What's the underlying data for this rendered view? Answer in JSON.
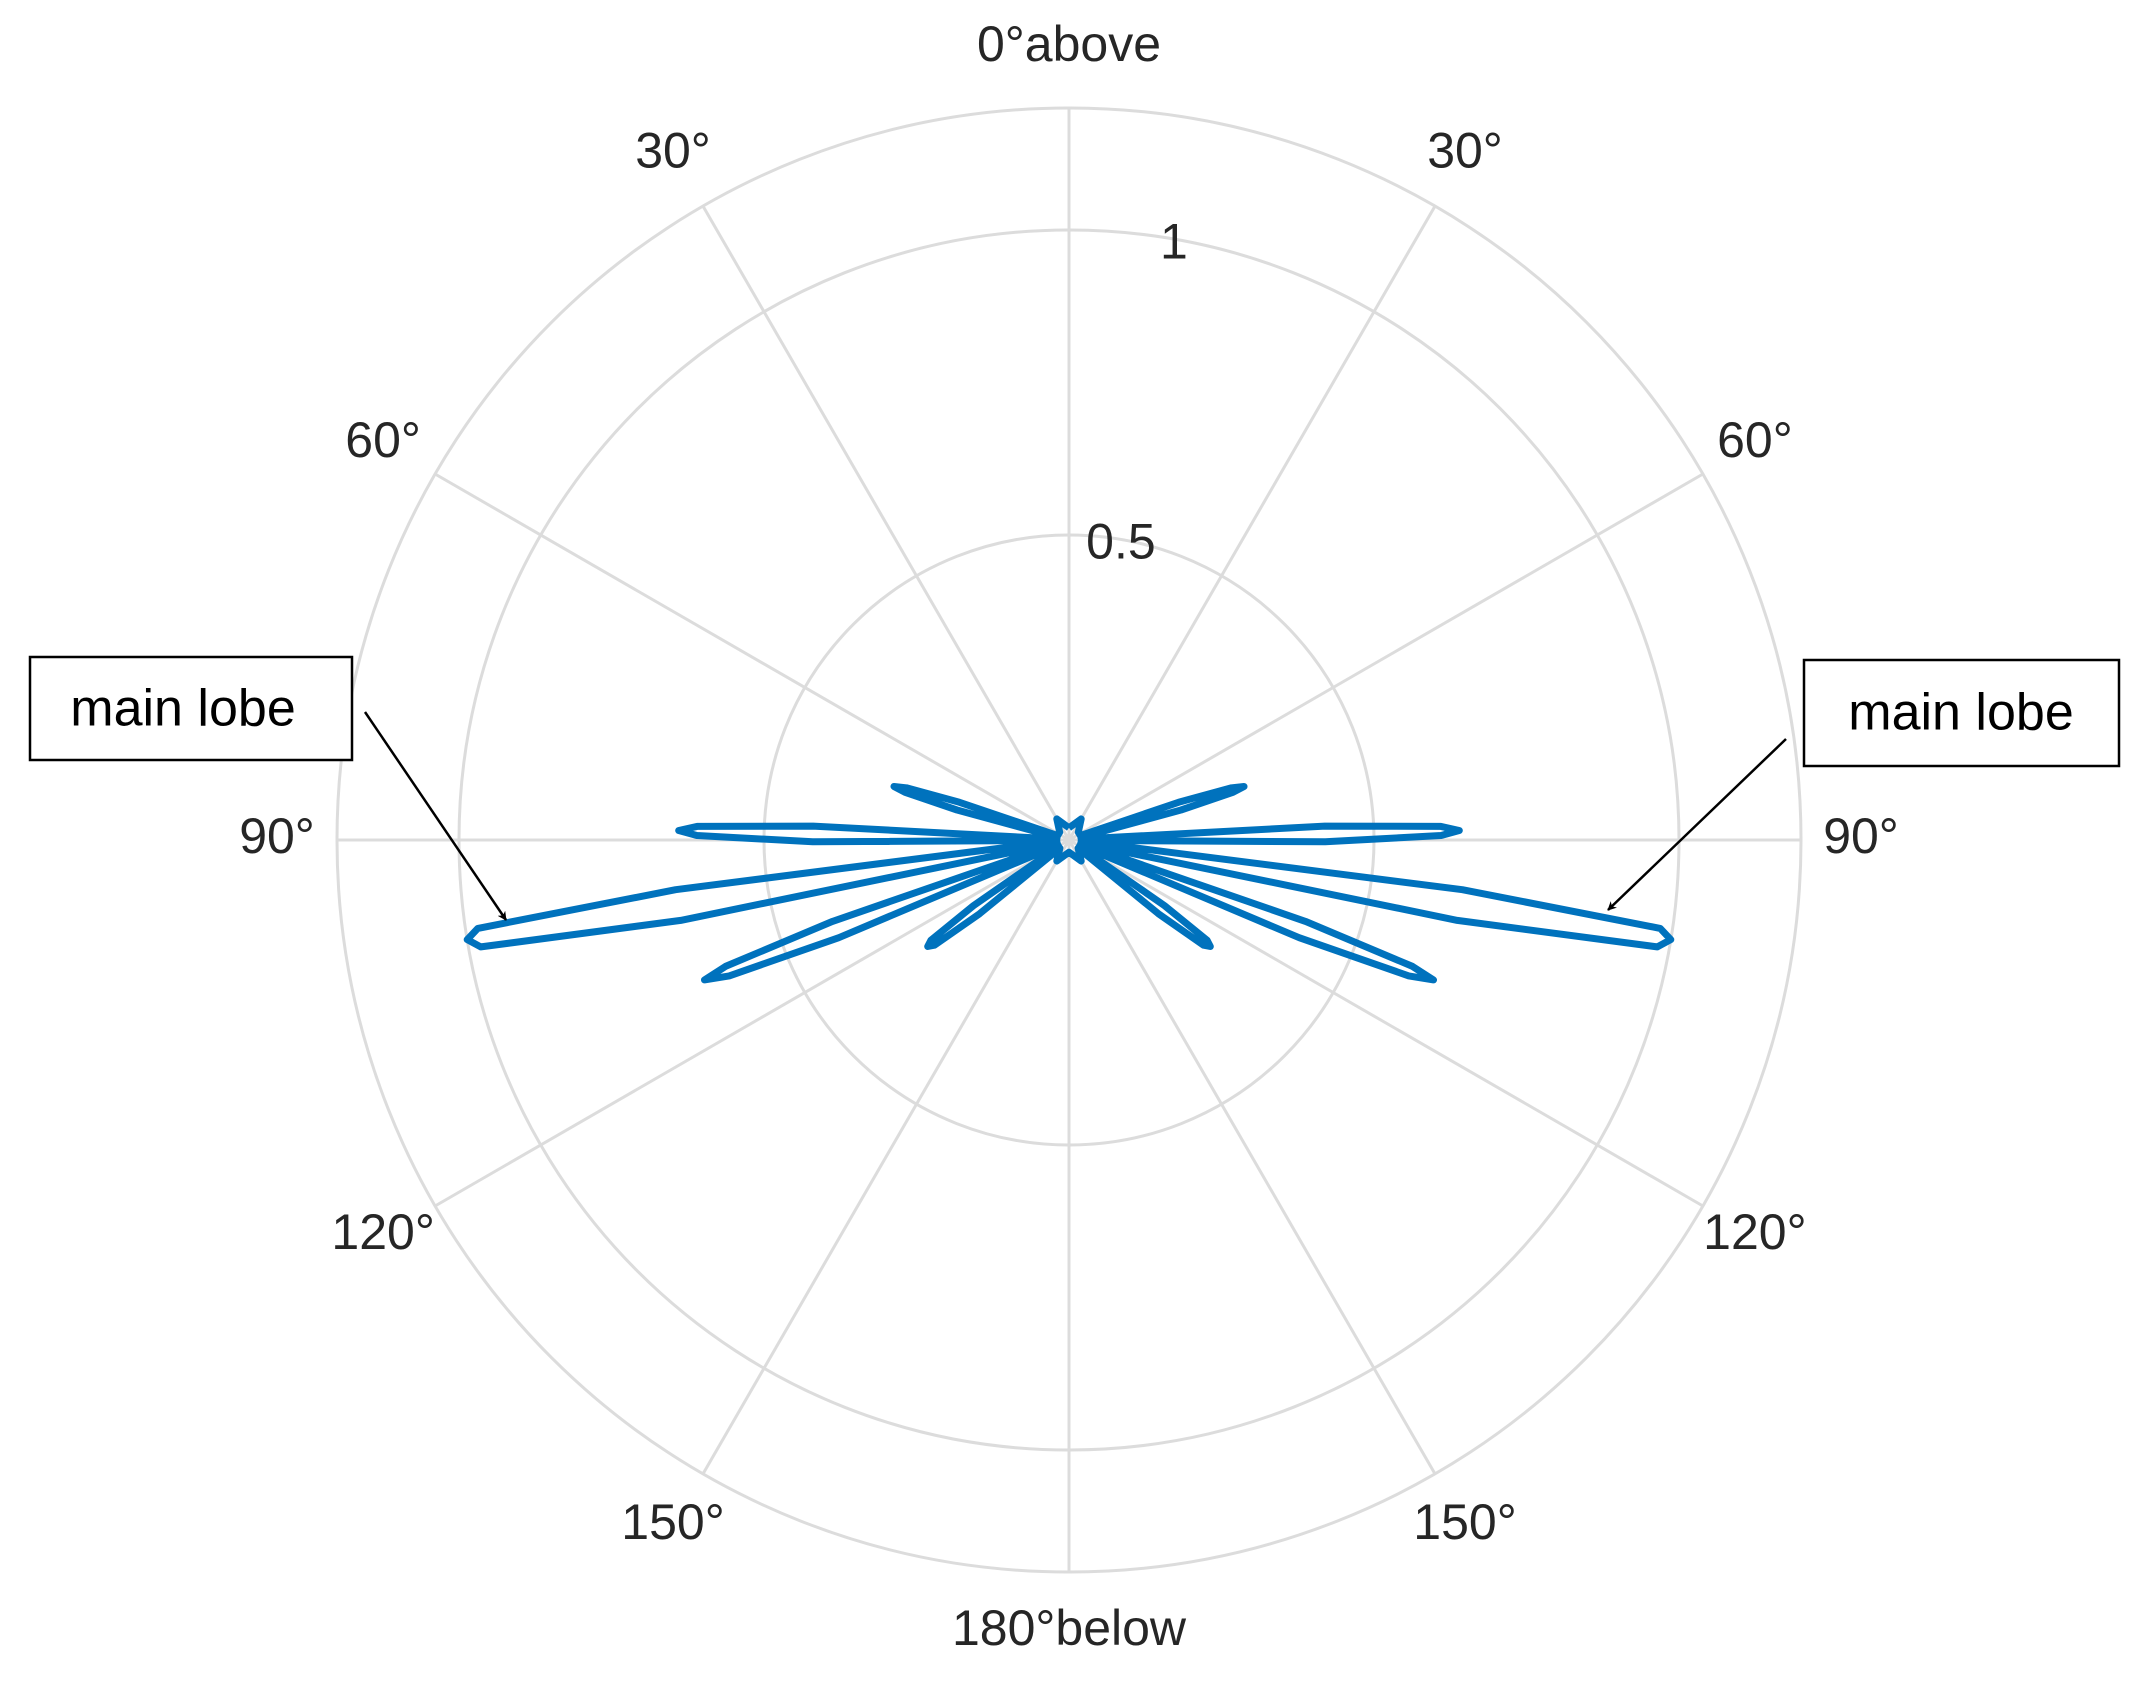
{
  "chart_data": {
    "type": "polar",
    "theta": [
      0,
      30,
      50,
      69,
      71,
      72.2,
      73,
      73.8,
      75,
      77,
      85.1,
      86.9,
      87.9,
      88.6,
      89.3,
      90.4,
      92.1,
      94.9,
      97.2,
      98.5,
      99.4,
      100.3,
      101.7,
      103.9,
      107,
      109,
      110.2,
      111,
      111.8,
      113,
      115,
      122,
      124.5,
      126,
      127,
      128,
      129.5,
      132,
      150,
      180,
      210,
      228,
      230.5,
      232,
      233,
      234,
      235.5,
      238,
      245,
      247,
      248.2,
      249,
      249.8,
      251,
      253,
      256.1,
      258.3,
      259.7,
      260.6,
      261.5,
      262.8,
      265.1,
      267.9,
      269.6,
      270.7,
      271.4,
      272.1,
      273.1,
      274.9,
      283,
      285,
      286.2,
      287,
      287.8,
      289,
      291,
      310,
      330,
      360
    ],
    "values": [
      0.02,
      0.04,
      0.02,
      0.02,
      0.19,
      0.28,
      0.3,
      0.28,
      0.19,
      0.02,
      0.02,
      0.42,
      0.61,
      0.64,
      0.61,
      0.42,
      0.02,
      0.02,
      0.65,
      0.98,
      1,
      0.98,
      0.65,
      0.02,
      0.02,
      0.41,
      0.6,
      0.64,
      0.6,
      0.41,
      0.02,
      0.02,
      0.19,
      0.28,
      0.29,
      0.28,
      0.19,
      0.02,
      0.04,
      0.02,
      0.04,
      0.02,
      0.19,
      0.28,
      0.29,
      0.28,
      0.19,
      0.02,
      0.02,
      0.41,
      0.6,
      0.64,
      0.6,
      0.41,
      0.02,
      0.02,
      0.65,
      0.98,
      1,
      0.98,
      0.65,
      0.02,
      0.02,
      0.42,
      0.61,
      0.64,
      0.61,
      0.42,
      0.02,
      0.02,
      0.19,
      0.28,
      0.3,
      0.28,
      0.19,
      0.02,
      0.02,
      0.04,
      0.02
    ],
    "color": "#0072bd",
    "rlim": [
      0,
      1.2
    ],
    "rticks": [
      0.5,
      1
    ],
    "thetaticks": [
      {
        "value": 0,
        "label": "0°above"
      },
      {
        "value": 30,
        "label": "30°"
      },
      {
        "value": 60,
        "label": "60°"
      },
      {
        "value": 90,
        "label": "90°"
      },
      {
        "value": 120,
        "label": "120°"
      },
      {
        "value": 150,
        "label": "150°"
      },
      {
        "value": 180,
        "label": "180°below"
      },
      {
        "value": 210,
        "label": "150°"
      },
      {
        "value": 240,
        "label": "120°"
      },
      {
        "value": 270,
        "label": "90°"
      },
      {
        "value": 300,
        "label": "60°"
      },
      {
        "value": 330,
        "label": "30°"
      }
    ],
    "grid": true,
    "annotations": [
      {
        "text": "main lobe"
      },
      {
        "text": "main lobe"
      }
    ]
  }
}
